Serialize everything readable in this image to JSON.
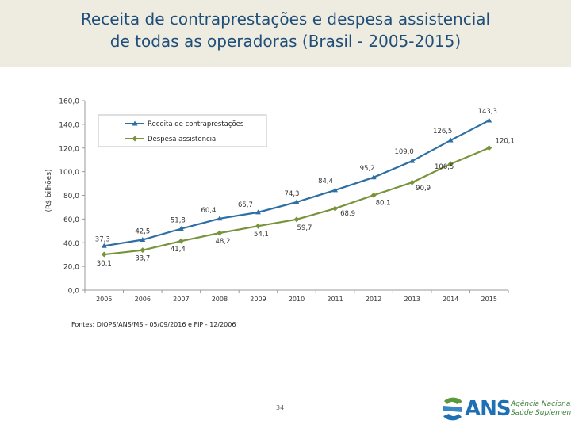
{
  "header": {
    "title_line1": "Receita de contraprestações e despesa assistencial",
    "title_line2": "de todas as operadoras (Brasil - 2005-2015)"
  },
  "chart_data": {
    "type": "line",
    "title": "",
    "xlabel": "",
    "ylabel": "(R$ bilhões)",
    "ylim": [
      0,
      160
    ],
    "yticks": [
      "0,0",
      "20,0",
      "40,0",
      "60,0",
      "80,0",
      "100,0",
      "120,0",
      "140,0",
      "160,0"
    ],
    "categories": [
      "2005",
      "2006",
      "2007",
      "2008",
      "2009",
      "2010",
      "2011",
      "2012",
      "2013",
      "2014",
      "2015"
    ],
    "legend_position": "top-left",
    "grid": false,
    "series": [
      {
        "name": "Receita de contraprestações",
        "color": "#2e6fa3",
        "marker": "triangle",
        "values": [
          37.3,
          42.5,
          51.8,
          60.4,
          65.7,
          74.3,
          84.4,
          95.2,
          109.0,
          126.5,
          143.3
        ],
        "labels": [
          "37,3",
          "42,5",
          "51,8",
          "60,4",
          "65,7",
          "74,3",
          "84,4",
          "95,2",
          "109,0",
          "126,5",
          "143,3"
        ]
      },
      {
        "name": "Despesa assistencial",
        "color": "#77933c",
        "marker": "diamond",
        "values": [
          30.1,
          33.7,
          41.4,
          48.2,
          54.1,
          59.7,
          68.9,
          80.1,
          90.9,
          106.5,
          120.1
        ],
        "labels": [
          "30,1",
          "33,7",
          "41,4",
          "48,2",
          "54,1",
          "59,7",
          "68,9",
          "80,1",
          "90,9",
          "106,5",
          "120,1"
        ]
      }
    ]
  },
  "footer": {
    "source": "Fontes: DIOPS/ANS/MS - 05/09/2016 e FIP - 12/2006",
    "page_number": "34",
    "logo_text": "ANS",
    "logo_sub_line1": "Agência Nacional de",
    "logo_sub_line2": "Saúde Suplementar"
  }
}
